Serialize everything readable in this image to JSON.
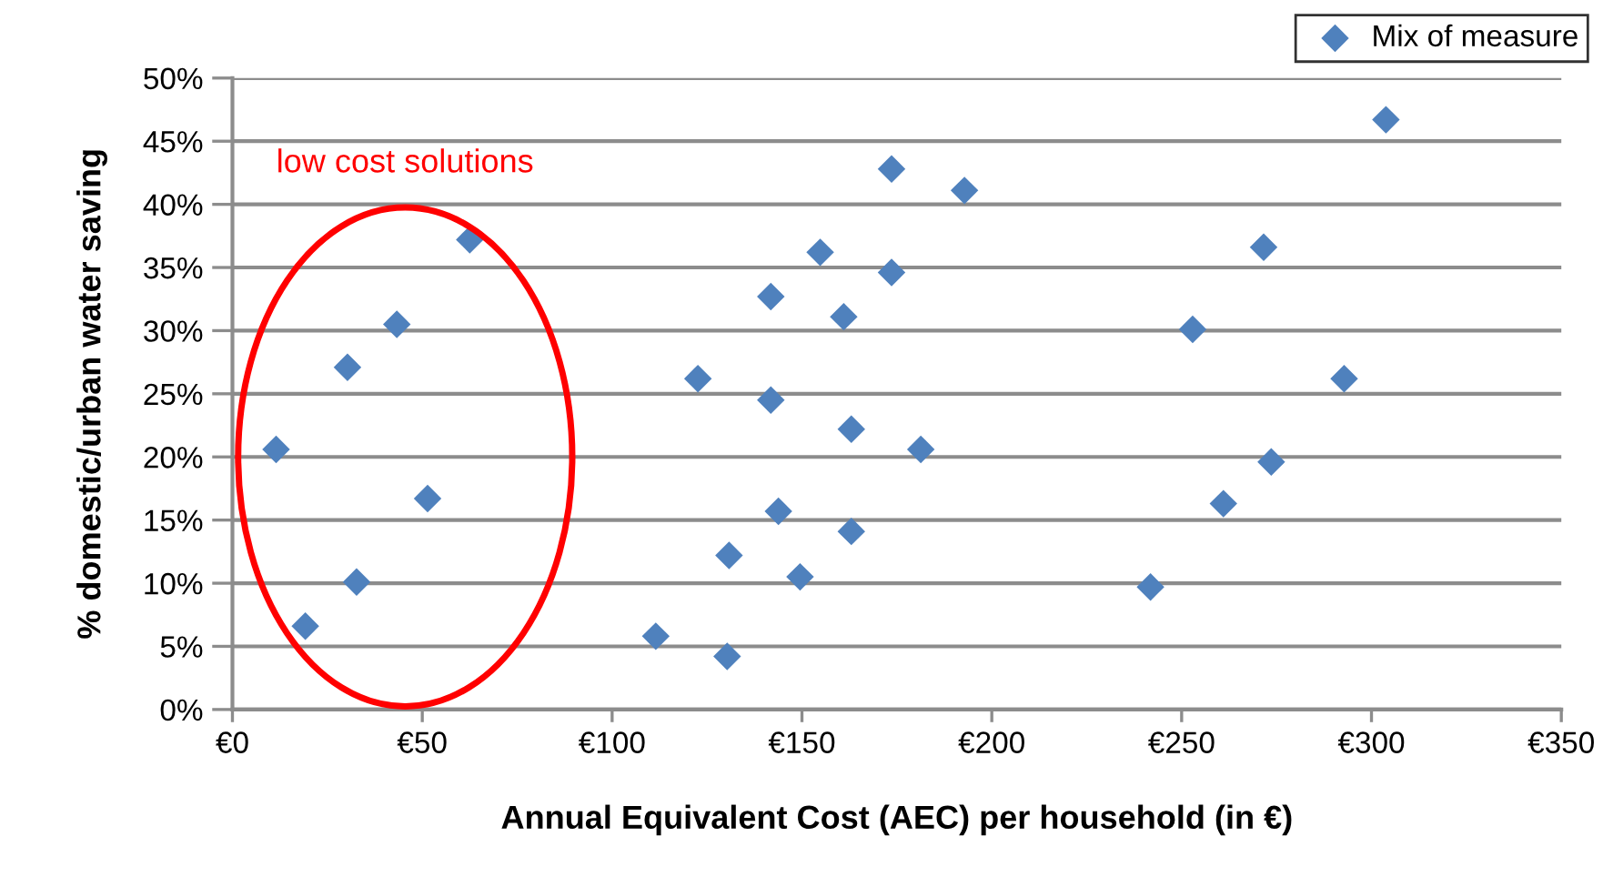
{
  "chart_data": {
    "type": "scatter",
    "xlabel": "Annual Equivalent Cost (AEC) per household (in €)",
    "ylabel": "% domestic/urban water saving",
    "series": [
      {
        "name": "Mix of measure",
        "color": "#4f81bd",
        "x": [
          11.5,
          19.2,
          30.3,
          32.7,
          43.3,
          51.4,
          62.5,
          111.5,
          122.6,
          130.8,
          130.3,
          141.8,
          141.8,
          143.8,
          149.5,
          154.8,
          161,
          163,
          163,
          173.6,
          173.6,
          181.3,
          192.8,
          241.8,
          252.9,
          261,
          271.6,
          273.6,
          292.8,
          303.8
        ],
        "values": [
          20.6,
          6.6,
          27.1,
          10.1,
          30.5,
          16.7,
          37.2,
          5.8,
          26.2,
          12.2,
          4.2,
          32.7,
          24.5,
          15.7,
          10.5,
          36.2,
          31.1,
          22.2,
          14.1,
          42.8,
          34.6,
          20.6,
          41.1,
          9.7,
          30.1,
          16.3,
          36.6,
          19.6,
          26.2,
          46.7
        ]
      }
    ],
    "marker": "diamond",
    "legend": "top right",
    "grid": "y",
    "xlim": [
      0,
      350
    ],
    "xticks": [
      {
        "value": 0,
        "label": "€0"
      },
      {
        "value": 50,
        "label": "€50"
      },
      {
        "value": 100,
        "label": "€100"
      },
      {
        "value": 150,
        "label": "€150"
      },
      {
        "value": 200,
        "label": "€200"
      },
      {
        "value": 250,
        "label": "€250"
      },
      {
        "value": 300,
        "label": "€300"
      },
      {
        "value": 350,
        "label": "€350"
      }
    ],
    "ylim": [
      0,
      50
    ],
    "yticks": [
      {
        "value": 0,
        "label": "0%"
      },
      {
        "value": 5,
        "label": "5%"
      },
      {
        "value": 10,
        "label": "10%"
      },
      {
        "value": 15,
        "label": "15%"
      },
      {
        "value": 20,
        "label": "20%"
      },
      {
        "value": 25,
        "label": "25%"
      },
      {
        "value": 30,
        "label": "30%"
      },
      {
        "value": 35,
        "label": "35%"
      },
      {
        "value": 40,
        "label": "40%"
      },
      {
        "value": 45,
        "label": "45%"
      },
      {
        "value": 50,
        "label": "50%"
      }
    ],
    "annotations": [
      "low cost solutions"
    ]
  }
}
